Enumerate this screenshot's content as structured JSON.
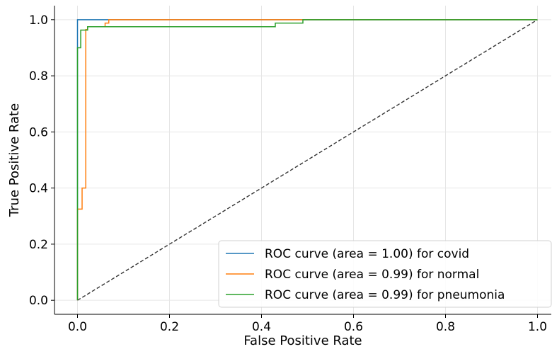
{
  "chart_data": {
    "type": "line",
    "xlabel": "False Positive Rate",
    "ylabel": "True Positive Rate",
    "xlim": [
      -0.05,
      1.03
    ],
    "ylim": [
      -0.05,
      1.05
    ],
    "x_ticks": [
      "0.0",
      "0.2",
      "0.4",
      "0.6",
      "0.8",
      "1.0"
    ],
    "y_ticks": [
      "0.0",
      "0.2",
      "0.4",
      "0.6",
      "0.8",
      "1.0"
    ],
    "grid": true,
    "legend_position": "lower-right",
    "series": [
      {
        "name": "ROC curve (area = 1.00) for covid",
        "color": "#1f77b4",
        "x": [
          0,
          0,
          0.065,
          0.065,
          1.0
        ],
        "y": [
          0,
          1.0,
          1.0,
          1.0,
          1.0
        ]
      },
      {
        "name": "ROC curve (area = 0.99) for normal",
        "color": "#ff7f0e",
        "x": [
          0,
          0,
          0.01,
          0.01,
          0.018,
          0.018,
          0.022,
          0.022,
          0.06,
          0.06,
          0.068,
          0.068,
          1.0
        ],
        "y": [
          0,
          0.325,
          0.325,
          0.4,
          0.4,
          0.965,
          0.965,
          0.975,
          0.975,
          0.988,
          0.988,
          1.0,
          1.0
        ]
      },
      {
        "name": "ROC curve (area = 0.99) for pneumonia",
        "color": "#2ca02c",
        "x": [
          0,
          0,
          0.007,
          0.007,
          0.022,
          0.022,
          0.43,
          0.43,
          0.49,
          0.49,
          1.0
        ],
        "y": [
          0,
          0.9,
          0.9,
          0.963,
          0.963,
          0.975,
          0.975,
          0.988,
          0.988,
          1.0,
          1.0
        ]
      }
    ],
    "reference_line": {
      "x": [
        0,
        1
      ],
      "y": [
        0,
        1
      ],
      "color": "#333333"
    }
  }
}
